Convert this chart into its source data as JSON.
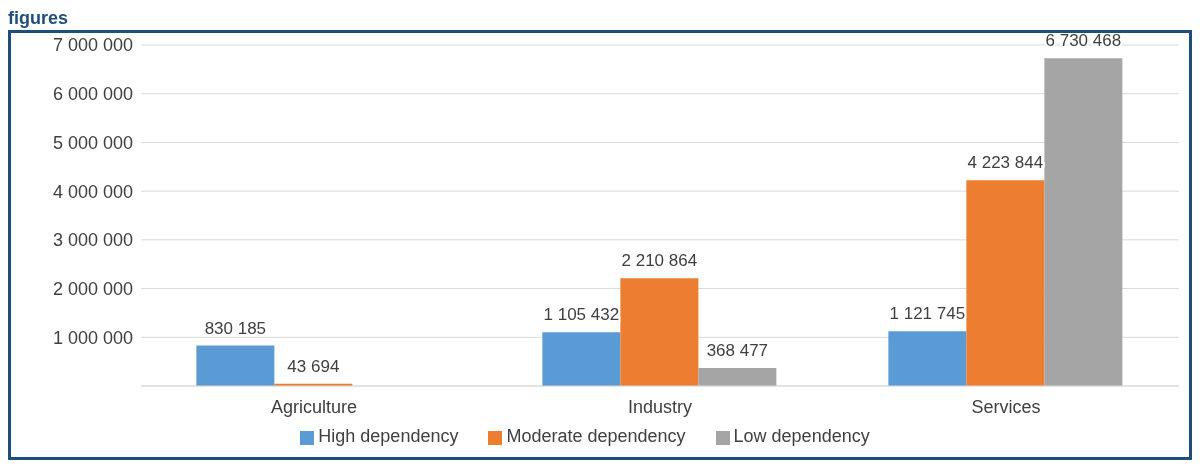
{
  "chart_data": {
    "type": "bar",
    "title": "figures",
    "categories": [
      "Agriculture",
      "Industry",
      "Services"
    ],
    "series": [
      {
        "name": "High dependency",
        "color": "#5b9bd5",
        "values": [
          830185,
          1105432,
          1121745
        ],
        "value_labels": [
          "830 185",
          "1 105 432",
          "1 121 745"
        ]
      },
      {
        "name": "Moderate dependency",
        "color": "#ed7d31",
        "values": [
          43694,
          2210864,
          4223844
        ],
        "value_labels": [
          "43 694",
          "2 210 864",
          "4 223 844"
        ]
      },
      {
        "name": "Low dependency",
        "color": "#a5a5a5",
        "values": [
          null,
          368477,
          6730468
        ],
        "value_labels": [
          null,
          "368 477",
          "6 730 468"
        ]
      }
    ],
    "ylim": [
      0,
      7000000
    ],
    "yticks": [
      {
        "value": 0,
        "label": null
      },
      {
        "value": 1000000,
        "label": "1 000 000"
      },
      {
        "value": 2000000,
        "label": "2 000 000"
      },
      {
        "value": 3000000,
        "label": "3 000 000"
      },
      {
        "value": 4000000,
        "label": "4 000 000"
      },
      {
        "value": 5000000,
        "label": "5 000 000"
      },
      {
        "value": 6000000,
        "label": "6 000 000"
      },
      {
        "value": 7000000,
        "label": "7 000 000"
      }
    ],
    "grid": "y",
    "legend": "bottom"
  }
}
